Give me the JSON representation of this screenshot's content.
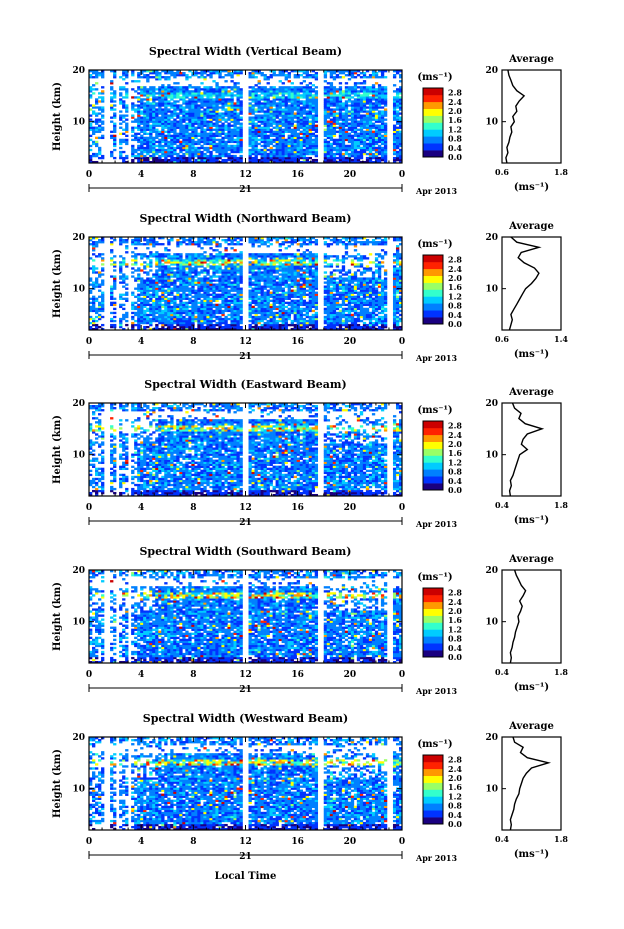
{
  "chart_data": {
    "type": "heatmap",
    "xlabel": "Local Time",
    "ylabel": "Height (km)",
    "x_ticks": [
      "0",
      "4",
      "8",
      "12",
      "16",
      "20",
      "0"
    ],
    "y_ticks": [
      "20",
      "10"
    ],
    "xlim": [
      0,
      24
    ],
    "ylim": [
      2,
      20
    ],
    "date_day": "21",
    "date_month_year": "Apr 2013",
    "colorbar": {
      "unit": "(ms⁻¹)",
      "ticks": [
        "2.8",
        "2.4",
        "2.0",
        "1.6",
        "1.2",
        "0.8",
        "0.4",
        "0.0"
      ],
      "range": [
        0,
        3.0
      ],
      "colormap": [
        "#1a0080",
        "#0033ff",
        "#0080ff",
        "#00ccff",
        "#33ffcc",
        "#99ff66",
        "#ffff00",
        "#ff9900",
        "#ff2200",
        "#cc0000"
      ]
    },
    "data_gaps_local_time": [
      [
        1.2,
        1.5
      ],
      [
        2.0,
        2.3
      ],
      [
        2.9,
        3.3
      ],
      [
        11.8,
        12.2
      ],
      [
        17.6,
        18.1
      ],
      [
        22.9,
        23.3
      ]
    ],
    "panels": [
      {
        "title": "Spectral Width (Vertical Beam)",
        "average_title": "Average",
        "average_xticks": [
          "0.6",
          "1.8"
        ],
        "average_xlim": [
          0.6,
          1.8
        ],
        "average_xlabel": "(ms⁻¹)",
        "average_profile": {
          "height_km": [
            2,
            3,
            4,
            5,
            6,
            7,
            8,
            9,
            10,
            11,
            12,
            13,
            14,
            15,
            16,
            17,
            18,
            19,
            20
          ],
          "width": [
            0.7,
            0.68,
            0.72,
            0.7,
            0.74,
            0.76,
            0.8,
            0.78,
            0.85,
            0.82,
            0.9,
            0.88,
            0.95,
            1.05,
            0.9,
            0.82,
            0.78,
            0.74,
            0.72
          ]
        }
      },
      {
        "title": "Spectral Width (Northward Beam)",
        "average_title": "Average",
        "average_xticks": [
          "0.6",
          "1.4"
        ],
        "average_xlim": [
          0.6,
          1.4
        ],
        "average_xlabel": "(ms⁻¹)",
        "average_profile": {
          "height_km": [
            2,
            3,
            4,
            5,
            6,
            7,
            8,
            9,
            10,
            11,
            12,
            13,
            14,
            15,
            16,
            17,
            18,
            19,
            20
          ],
          "width": [
            0.7,
            0.72,
            0.74,
            0.72,
            0.76,
            0.8,
            0.84,
            0.88,
            0.92,
            1.0,
            1.06,
            1.1,
            1.04,
            0.9,
            0.82,
            0.86,
            1.1,
            0.8,
            0.72
          ]
        }
      },
      {
        "title": "Spectral Width (Eastward Beam)",
        "average_title": "Average",
        "average_xticks": [
          "0.4",
          "1.8"
        ],
        "average_xlim": [
          0.4,
          1.8
        ],
        "average_xlabel": "(ms⁻¹)",
        "average_profile": {
          "height_km": [
            2,
            3,
            4,
            5,
            6,
            7,
            8,
            9,
            10,
            11,
            12,
            13,
            14,
            15,
            16,
            17,
            18,
            19,
            20
          ],
          "width": [
            0.6,
            0.58,
            0.62,
            0.6,
            0.66,
            0.7,
            0.74,
            0.78,
            0.82,
            1.0,
            0.86,
            0.9,
            1.0,
            1.35,
            0.95,
            0.8,
            0.85,
            0.7,
            0.65
          ]
        }
      },
      {
        "title": "Spectral Width (Southward Beam)",
        "average_title": "Average",
        "average_xticks": [
          "0.4",
          "1.8"
        ],
        "average_xlim": [
          0.4,
          1.8
        ],
        "average_xlabel": "(ms⁻¹)",
        "average_profile": {
          "height_km": [
            2,
            3,
            4,
            5,
            6,
            7,
            8,
            9,
            10,
            11,
            12,
            13,
            14,
            15,
            16,
            17,
            18,
            19,
            20
          ],
          "width": [
            0.6,
            0.62,
            0.6,
            0.64,
            0.66,
            0.7,
            0.72,
            0.76,
            0.8,
            0.78,
            0.84,
            0.88,
            0.82,
            0.9,
            0.96,
            0.86,
            0.8,
            0.74,
            0.7
          ]
        }
      },
      {
        "title": "Spectral Width (Westward Beam)",
        "average_title": "Average",
        "average_xticks": [
          "0.4",
          "1.8"
        ],
        "average_xlim": [
          0.4,
          1.8
        ],
        "average_xlabel": "(ms⁻¹)",
        "average_profile": {
          "height_km": [
            2,
            3,
            4,
            5,
            6,
            7,
            8,
            9,
            10,
            11,
            12,
            13,
            14,
            15,
            16,
            17,
            18,
            19,
            20
          ],
          "width": [
            0.6,
            0.62,
            0.6,
            0.64,
            0.68,
            0.7,
            0.74,
            0.8,
            0.82,
            0.86,
            0.9,
            0.98,
            1.1,
            1.5,
            1.0,
            0.84,
            0.9,
            0.7,
            0.66
          ]
        }
      }
    ]
  }
}
